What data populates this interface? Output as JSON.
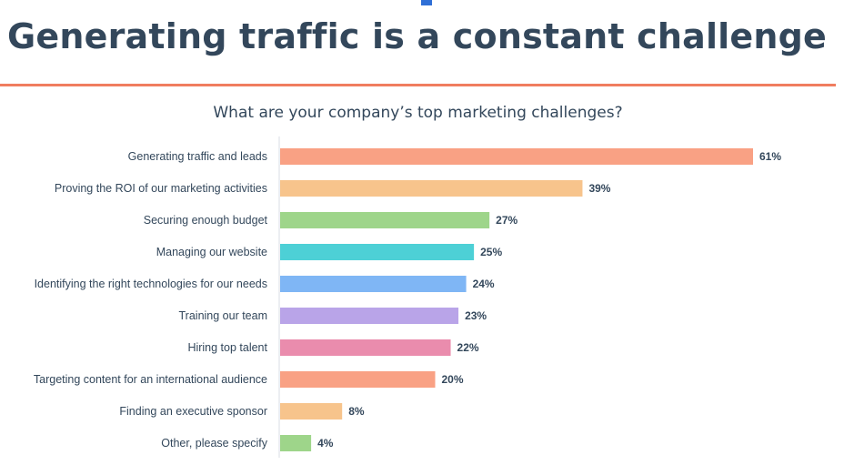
{
  "title": "Generating traffic is a constant challenge",
  "chart_data": {
    "type": "bar",
    "orientation": "horizontal",
    "title": "What are your company’s top marketing challenges?",
    "categories": [
      "Generating traffic and leads",
      "Proving the ROI of our marketing activities",
      "Securing enough budget",
      "Managing our website",
      "Identifying the right technologies for our needs",
      "Training our team",
      "Hiring top talent",
      "Targeting content for an international audience",
      "Finding an executive sponsor",
      "Other, please specify"
    ],
    "values": [
      61,
      39,
      27,
      25,
      24,
      23,
      22,
      20,
      8,
      4
    ],
    "value_labels": [
      "61%",
      "39%",
      "27%",
      "25%",
      "24%",
      "23%",
      "22%",
      "20%",
      "8%",
      "4%"
    ],
    "unit": "%",
    "colors": [
      "#f9a184",
      "#f7c48c",
      "#9ed58a",
      "#4dd0d6",
      "#7fb6f5",
      "#b9a4e8",
      "#ea8cad",
      "#f9a184",
      "#f7c48c",
      "#9ed58a"
    ],
    "xlabel": "",
    "ylabel": "",
    "grid": false,
    "legend": "none"
  }
}
